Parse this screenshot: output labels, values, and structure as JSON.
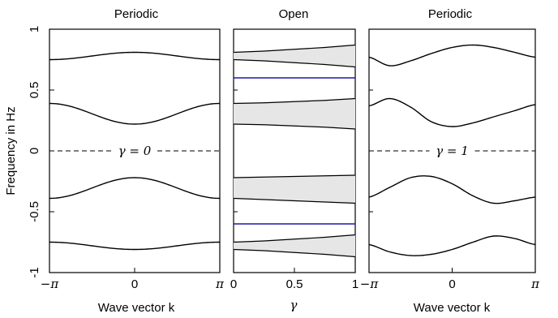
{
  "chart_data": [
    {
      "type": "line",
      "title": "Periodic",
      "xlabel": "Wave vector k",
      "ylabel": "Frequency in Hz",
      "xlim": [
        -3.14159,
        3.14159
      ],
      "ylim": [
        -1,
        1
      ],
      "x_ticks": [
        {
          "value": -3.14159,
          "label": "−π"
        },
        {
          "value": 0,
          "label": "0"
        },
        {
          "value": 3.14159,
          "label": "π"
        }
      ],
      "y_ticks": [
        {
          "value": 1,
          "label": "1"
        },
        {
          "value": 0.5,
          "label": "0.5"
        },
        {
          "value": 0,
          "label": "0"
        },
        {
          "value": -0.5,
          "label": "-0.5"
        },
        {
          "value": -1,
          "label": "-1"
        }
      ],
      "annotation": "γ = 0",
      "bands": [
        {
          "at_minus_pi": 0.75,
          "at_zero": 0.81,
          "at_pi": 0.75
        },
        {
          "at_minus_pi": 0.39,
          "at_zero": 0.22,
          "at_pi": 0.39
        },
        {
          "at_minus_pi": -0.39,
          "at_zero": -0.22,
          "at_pi": -0.39
        },
        {
          "at_minus_pi": -0.75,
          "at_zero": -0.81,
          "at_pi": -0.75
        }
      ],
      "grid": false
    },
    {
      "type": "area",
      "title": "Open",
      "xlabel": "γ",
      "xlim": [
        0,
        1
      ],
      "ylim": [
        -1,
        1
      ],
      "x_ticks": [
        {
          "value": 0,
          "label": "0"
        },
        {
          "value": 0.5,
          "label": "0.5"
        },
        {
          "value": 1,
          "label": "1"
        }
      ],
      "band_regions": [
        {
          "x": [
            0,
            0.25,
            0.5,
            0.75,
            1
          ],
          "upper": [
            0.81,
            0.82,
            0.835,
            0.85,
            0.87
          ],
          "lower": [
            0.75,
            0.74,
            0.725,
            0.71,
            0.69
          ]
        },
        {
          "x": [
            0,
            0.25,
            0.5,
            0.75,
            1
          ],
          "upper": [
            0.39,
            0.395,
            0.405,
            0.415,
            0.43
          ],
          "lower": [
            0.22,
            0.215,
            0.205,
            0.195,
            0.18
          ]
        },
        {
          "x": [
            0,
            0.25,
            0.5,
            0.75,
            1
          ],
          "upper": [
            -0.22,
            -0.215,
            -0.21,
            -0.205,
            -0.2
          ],
          "lower": [
            -0.39,
            -0.4,
            -0.41,
            -0.42,
            -0.43
          ]
        },
        {
          "x": [
            0,
            0.25,
            0.5,
            0.75,
            1
          ],
          "upper": [
            -0.75,
            -0.74,
            -0.725,
            -0.71,
            -0.69
          ],
          "lower": [
            -0.81,
            -0.82,
            -0.835,
            -0.85,
            -0.87
          ]
        }
      ],
      "edge_states": [
        0.6,
        -0.6
      ],
      "edge_state_color": "#1a1aa6",
      "band_fill_color": "#e6e6e6",
      "grid": false
    },
    {
      "type": "line",
      "title": "Periodic",
      "xlabel": "Wave vector k",
      "xlim": [
        -3.14159,
        3.14159
      ],
      "ylim": [
        -1,
        1
      ],
      "x_ticks": [
        {
          "value": -3.14159,
          "label": "−π"
        },
        {
          "value": 0,
          "label": "0"
        },
        {
          "value": 3.14159,
          "label": "π"
        }
      ],
      "annotation": "γ = 1",
      "bands": [
        {
          "x": [
            -3.14159,
            -2.36,
            -1.57,
            -0.79,
            0,
            0.79,
            1.57,
            2.36,
            3.14159
          ],
          "y": [
            0.77,
            0.7,
            0.74,
            0.8,
            0.85,
            0.87,
            0.85,
            0.81,
            0.77
          ]
        },
        {
          "x": [
            -3.14159,
            -2.36,
            -1.57,
            -0.79,
            0,
            0.79,
            1.57,
            2.36,
            3.14159
          ],
          "y": [
            0.37,
            0.43,
            0.36,
            0.24,
            0.2,
            0.23,
            0.28,
            0.33,
            0.38
          ]
        },
        {
          "x": [
            -3.14159,
            -2.36,
            -1.57,
            -0.79,
            0,
            0.79,
            1.57,
            2.36,
            3.14159
          ],
          "y": [
            -0.38,
            -0.3,
            -0.22,
            -0.21,
            -0.27,
            -0.37,
            -0.43,
            -0.41,
            -0.38
          ]
        },
        {
          "x": [
            -3.14159,
            -2.36,
            -1.57,
            -0.79,
            0,
            0.79,
            1.57,
            2.36,
            3.14159
          ],
          "y": [
            -0.77,
            -0.83,
            -0.86,
            -0.85,
            -0.81,
            -0.75,
            -0.7,
            -0.72,
            -0.77
          ]
        }
      ],
      "grid": false
    }
  ],
  "colors": {
    "axis": "#000000",
    "line": "#000000",
    "band_fill": "#e6e6e6",
    "edge_state": "#1a1aa6"
  }
}
